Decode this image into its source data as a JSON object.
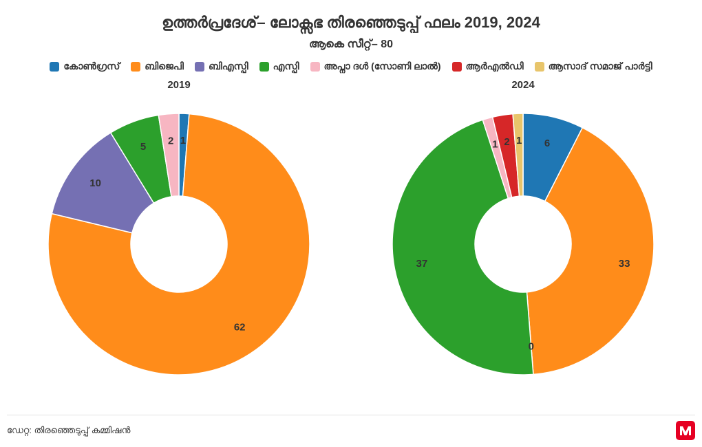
{
  "title": "ഉത്തർപ്രദേശ്– ലോക്സഭ തിരഞ്ഞെടുപ്പ് ഫലം 2019, 2024",
  "subtitle": "ആകെ സീറ്റ്– 80",
  "source": "ഡേറ്റ: തിരഞ്ഞെടുപ്പ് കമ്മിഷൻ",
  "legend": [
    {
      "label": "കോൺഗ്രസ്",
      "color": "#1f77b4"
    },
    {
      "label": "ബിജെപി",
      "color": "#ff8c1a"
    },
    {
      "label": "ബിഎസ്പി",
      "color": "#7570b3"
    },
    {
      "label": "എസ്പി",
      "color": "#2ca02c"
    },
    {
      "label": "അപ്നാ ദൾ (സോണി ലാൽ)",
      "color": "#f7b6c2"
    },
    {
      "label": "ആർഎൽഡി",
      "color": "#d62728"
    },
    {
      "label": "ആസാദ് സമാജ് പാർട്ടി",
      "color": "#e8c56b"
    }
  ],
  "charts": [
    {
      "title": "2019",
      "total": 80,
      "inner_radius": 70,
      "outer_radius": 190,
      "label_radius": 150,
      "start_angle_deg": -90,
      "background": "#ffffff",
      "slices": [
        {
          "name": "കോൺഗ്രസ്",
          "value": 1,
          "color": "#1f77b4"
        },
        {
          "name": "ബിജെപി",
          "value": 62,
          "color": "#ff8c1a"
        },
        {
          "name": "ബിഎസ്പി",
          "value": 10,
          "color": "#7570b3"
        },
        {
          "name": "എസ്പി",
          "value": 5,
          "color": "#2ca02c"
        },
        {
          "name": "അപ്നാ ദൾ (സോണി ലാൽ)",
          "value": 2,
          "color": "#f7b6c2"
        }
      ]
    },
    {
      "title": "2024",
      "total": 80,
      "inner_radius": 70,
      "outer_radius": 190,
      "label_radius": 150,
      "start_angle_deg": -90,
      "background": "#ffffff",
      "slices": [
        {
          "name": "കോൺഗ്രസ്",
          "value": 6,
          "color": "#1f77b4"
        },
        {
          "name": "ബിജെപി",
          "value": 33,
          "color": "#ff8c1a"
        },
        {
          "name": "ബിഎസ്പി",
          "value": 0,
          "color": "#7570b3"
        },
        {
          "name": "എസ്പി",
          "value": 37,
          "color": "#2ca02c"
        },
        {
          "name": "അപ്നാ ദൾ (സോണി ലാൽ)",
          "value": 1,
          "color": "#f7b6c2"
        },
        {
          "name": "ആർഎൽഡി",
          "value": 2,
          "color": "#d62728"
        },
        {
          "name": "ആസാദ് സമാജ് പാർട്ടി",
          "value": 1,
          "color": "#e8c56b"
        }
      ]
    }
  ],
  "logo": {
    "bg": "#e60023",
    "fg": "#ffffff"
  }
}
